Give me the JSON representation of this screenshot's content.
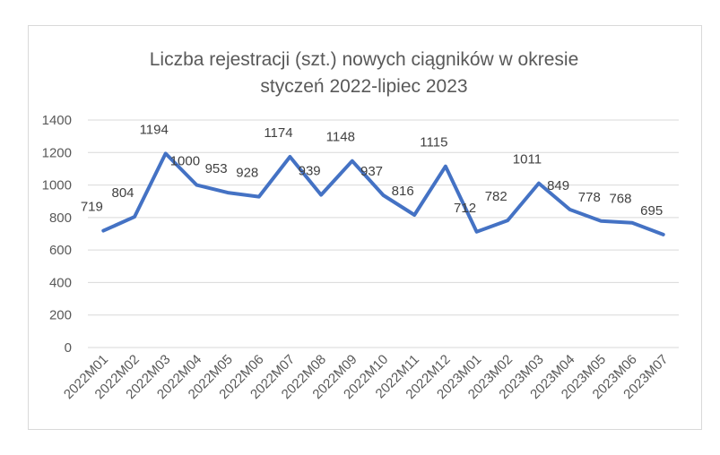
{
  "chart_data": {
    "type": "line",
    "title_lines": [
      "Liczba rejestracji (szt.) nowych ciągników w okresie",
      "styczeń 2022-lipiec 2023"
    ],
    "xlabel": "",
    "ylabel": "",
    "categories": [
      "2022M01",
      "2022M02",
      "2022M03",
      "2022M04",
      "2022M05",
      "2022M06",
      "2022M07",
      "2022M08",
      "2022M09",
      "2022M10",
      "2022M11",
      "2022M12",
      "2023M01",
      "2023M02",
      "2023M03",
      "2023M04",
      "2023M05",
      "2023M06",
      "2023M07"
    ],
    "series": [
      {
        "values": [
          719,
          804,
          1194,
          1000,
          953,
          928,
          1174,
          939,
          1148,
          937,
          816,
          1115,
          712,
          782,
          1011,
          849,
          778,
          768,
          695
        ]
      }
    ],
    "ylim": [
      0,
      1400
    ],
    "yticks": [
      "0",
      "200",
      "400",
      "600",
      "800",
      "1000",
      "1200",
      "1400"
    ],
    "grid": true,
    "data_labels": true,
    "line_color": "#4472c4",
    "gridline_color": "#d9d9d9"
  }
}
